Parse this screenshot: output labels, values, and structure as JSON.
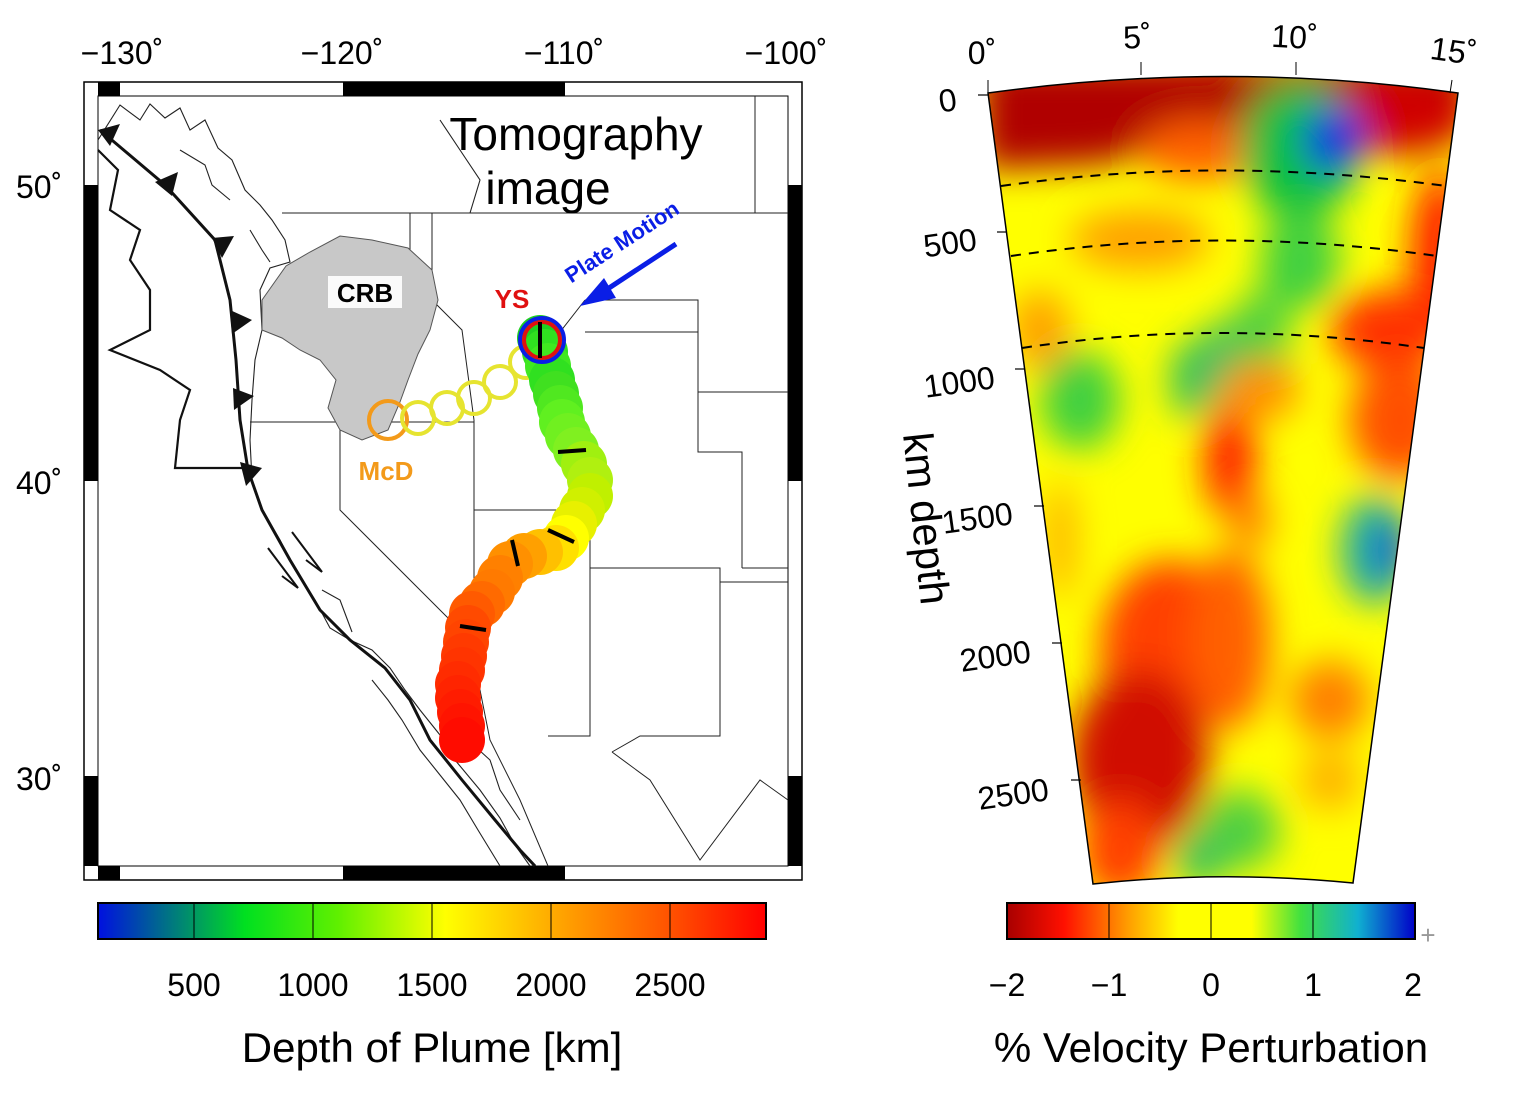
{
  "map_panel": {
    "lon_ticks": [
      "−130˚",
      "−120˚",
      "−110˚",
      "−100˚"
    ],
    "lat_ticks": [
      "50˚",
      "40˚",
      "30˚"
    ],
    "overlay_title_line1": "Tomography",
    "overlay_title_line2": "image",
    "plate_motion_label": "Plate Motion",
    "crb_label": "CRB",
    "ys_label": "YS",
    "mcd_label": "McD",
    "colorbar_ticks": [
      "500",
      "1000",
      "1500",
      "2000",
      "2500"
    ],
    "colorbar_title": "Depth of Plume [km]",
    "colors": {
      "plate_motion": "#0a1ee6",
      "ys": "#e01010",
      "mcd": "#f39a1a",
      "crb_fill": "#c8c8c8"
    }
  },
  "section_panel": {
    "angle_ticks": [
      "0˚",
      "5˚",
      "10˚",
      "15˚"
    ],
    "depth_ticks": [
      "0",
      "500",
      "1000",
      "1500",
      "2000",
      "2500"
    ],
    "depth_axis_label": "km depth",
    "colorbar_ticks": [
      "−2",
      "−1",
      "0",
      "1",
      "2"
    ],
    "colorbar_title": "% Velocity Perturbation"
  }
}
